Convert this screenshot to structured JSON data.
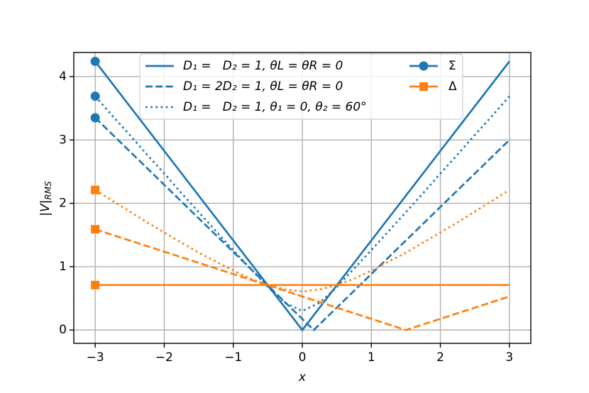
{
  "chart_data": {
    "type": "line",
    "x_label": "x",
    "y_label": "|V|",
    "y_label_subscript": "RMS",
    "xlim": [
      -3.31,
      3.31
    ],
    "ylim": [
      -0.21,
      4.38
    ],
    "xticks": [
      {
        "value": -3,
        "label": "−3"
      },
      {
        "value": -2,
        "label": "−2"
      },
      {
        "value": -1,
        "label": "−1"
      },
      0,
      1,
      2,
      3
    ],
    "yticks": [
      0,
      1,
      2,
      3,
      4
    ],
    "grid": true,
    "series": [
      {
        "color": "#1f77b4",
        "linestyle": "solid",
        "marker": "circle",
        "x": [
          -3,
          0,
          3
        ],
        "values": [
          4.24,
          0,
          4.24
        ]
      },
      {
        "color": "#1f77b4",
        "linestyle": "dashed",
        "marker": "circle",
        "x": [
          -3,
          0.165,
          3
        ],
        "values": [
          3.35,
          0,
          3.0
        ]
      },
      {
        "color": "#1f77b4",
        "linestyle": "dotted",
        "marker": "circle",
        "x": [
          -3,
          -2.75,
          -2.5,
          -2.25,
          -2,
          -1.75,
          -1.5,
          -1.25,
          -1,
          -0.75,
          -0.5,
          -0.25,
          0,
          0.25,
          0.5,
          0.75,
          1,
          1.25,
          1.5,
          1.75,
          2,
          2.25,
          2.5,
          2.75,
          3
        ],
        "values": [
          3.69,
          3.38,
          3.08,
          2.77,
          2.47,
          2.16,
          1.86,
          1.56,
          1.26,
          0.97,
          0.68,
          0.43,
          0.3,
          0.43,
          0.68,
          0.97,
          1.26,
          1.56,
          1.86,
          2.16,
          2.47,
          2.77,
          3.08,
          3.38,
          3.69
        ]
      },
      {
        "color": "#ff7f0e",
        "linestyle": "solid",
        "marker": "square",
        "x": [
          -3,
          3
        ],
        "values": [
          0.71,
          0.71
        ]
      },
      {
        "color": "#ff7f0e",
        "linestyle": "dashed",
        "marker": "square",
        "x": [
          -3,
          1.5,
          3
        ],
        "values": [
          1.59,
          0,
          0.53
        ]
      },
      {
        "color": "#ff7f0e",
        "linestyle": "dotted",
        "marker": "square",
        "x": [
          -3,
          -2.75,
          -2.5,
          -2.25,
          -2,
          -1.75,
          -1.5,
          -1.25,
          -1,
          -0.75,
          -0.5,
          -0.25,
          0,
          0.25,
          0.5,
          0.75,
          1,
          1.25,
          1.5,
          1.75,
          2,
          2.25,
          2.5,
          2.75,
          3
        ],
        "values": [
          2.21,
          2.04,
          1.87,
          1.7,
          1.54,
          1.38,
          1.22,
          1.08,
          0.94,
          0.81,
          0.71,
          0.64,
          0.61,
          0.64,
          0.71,
          0.81,
          0.94,
          1.08,
          1.22,
          1.38,
          1.54,
          1.7,
          1.87,
          2.04,
          2.21
        ]
      }
    ],
    "legend": [
      {
        "label": "D₁ =   D₂ = 1, θL = θR = 0",
        "color": "#1f77b4",
        "linestyle": "solid"
      },
      {
        "label": "D₁ = 2D₂ = 1, θL = θR = 0",
        "color": "#1f77b4",
        "linestyle": "dashed"
      },
      {
        "label": "D₁ =   D₂ = 1, θ₁ = 0, θ₂ = 60°",
        "color": "#1f77b4",
        "linestyle": "dotted"
      },
      {
        "label": "Σ",
        "color": "#1f77b4",
        "linestyle": "solid",
        "marker": "circle"
      },
      {
        "label": "Δ",
        "color": "#ff7f0e",
        "linestyle": "solid",
        "marker": "square"
      }
    ]
  }
}
